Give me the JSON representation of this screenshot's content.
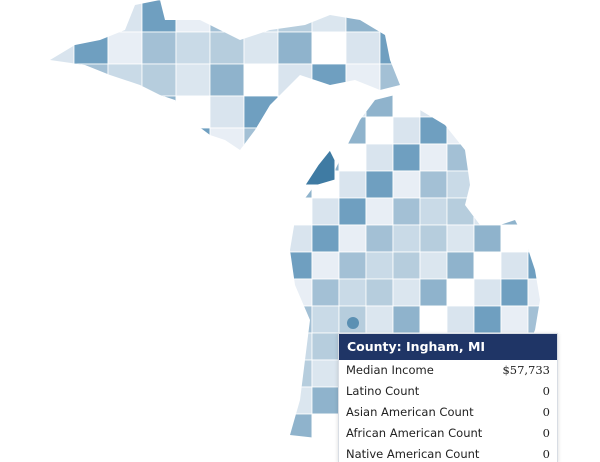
{
  "tooltip": {
    "title": "County: Ingham, MI",
    "rows": [
      {
        "label": "Median Income",
        "value": "$57,733"
      },
      {
        "label": "Latino Count",
        "value": 0
      },
      {
        "label": "Asian American Count",
        "value": 0
      },
      {
        "label": "African American Count",
        "value": 0
      },
      {
        "label": "Native American Count",
        "value": 0
      }
    ]
  }
}
